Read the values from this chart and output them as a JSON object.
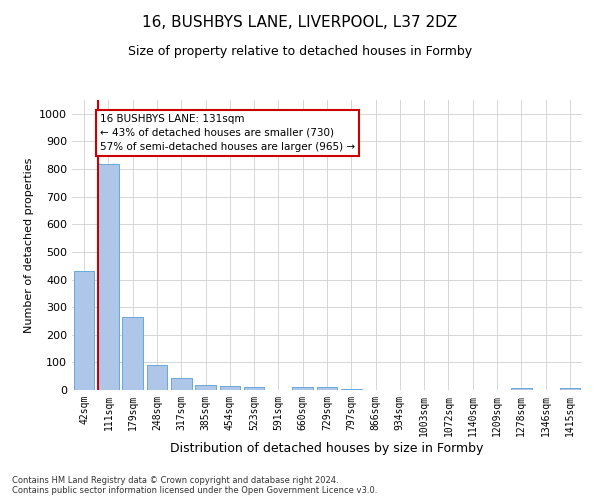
{
  "title": "16, BUSHBYS LANE, LIVERPOOL, L37 2DZ",
  "subtitle": "Size of property relative to detached houses in Formby",
  "xlabel": "Distribution of detached houses by size in Formby",
  "ylabel": "Number of detached properties",
  "footer_line1": "Contains HM Land Registry data © Crown copyright and database right 2024.",
  "footer_line2": "Contains public sector information licensed under the Open Government Licence v3.0.",
  "categories": [
    "42sqm",
    "111sqm",
    "179sqm",
    "248sqm",
    "317sqm",
    "385sqm",
    "454sqm",
    "523sqm",
    "591sqm",
    "660sqm",
    "729sqm",
    "797sqm",
    "866sqm",
    "934sqm",
    "1003sqm",
    "1072sqm",
    "1140sqm",
    "1209sqm",
    "1278sqm",
    "1346sqm",
    "1415sqm"
  ],
  "values": [
    430,
    820,
    265,
    90,
    43,
    18,
    15,
    10,
    0,
    10,
    10,
    5,
    0,
    0,
    0,
    0,
    0,
    0,
    7,
    0,
    7
  ],
  "bar_color": "#aec6e8",
  "bar_edge_color": "#5a9fd4",
  "red_line_color": "#cc0000",
  "annotation_line1": "16 BUSHBYS LANE: 131sqm",
  "annotation_line2": "← 43% of detached houses are smaller (730)",
  "annotation_line3": "57% of semi-detached houses are larger (965) →",
  "annotation_box_color": "#ffffff",
  "annotation_box_edge_color": "#cc0000",
  "ylim": [
    0,
    1050
  ],
  "yticks": [
    0,
    100,
    200,
    300,
    400,
    500,
    600,
    700,
    800,
    900,
    1000
  ],
  "background_color": "#ffffff",
  "grid_color": "#d0d0d0"
}
